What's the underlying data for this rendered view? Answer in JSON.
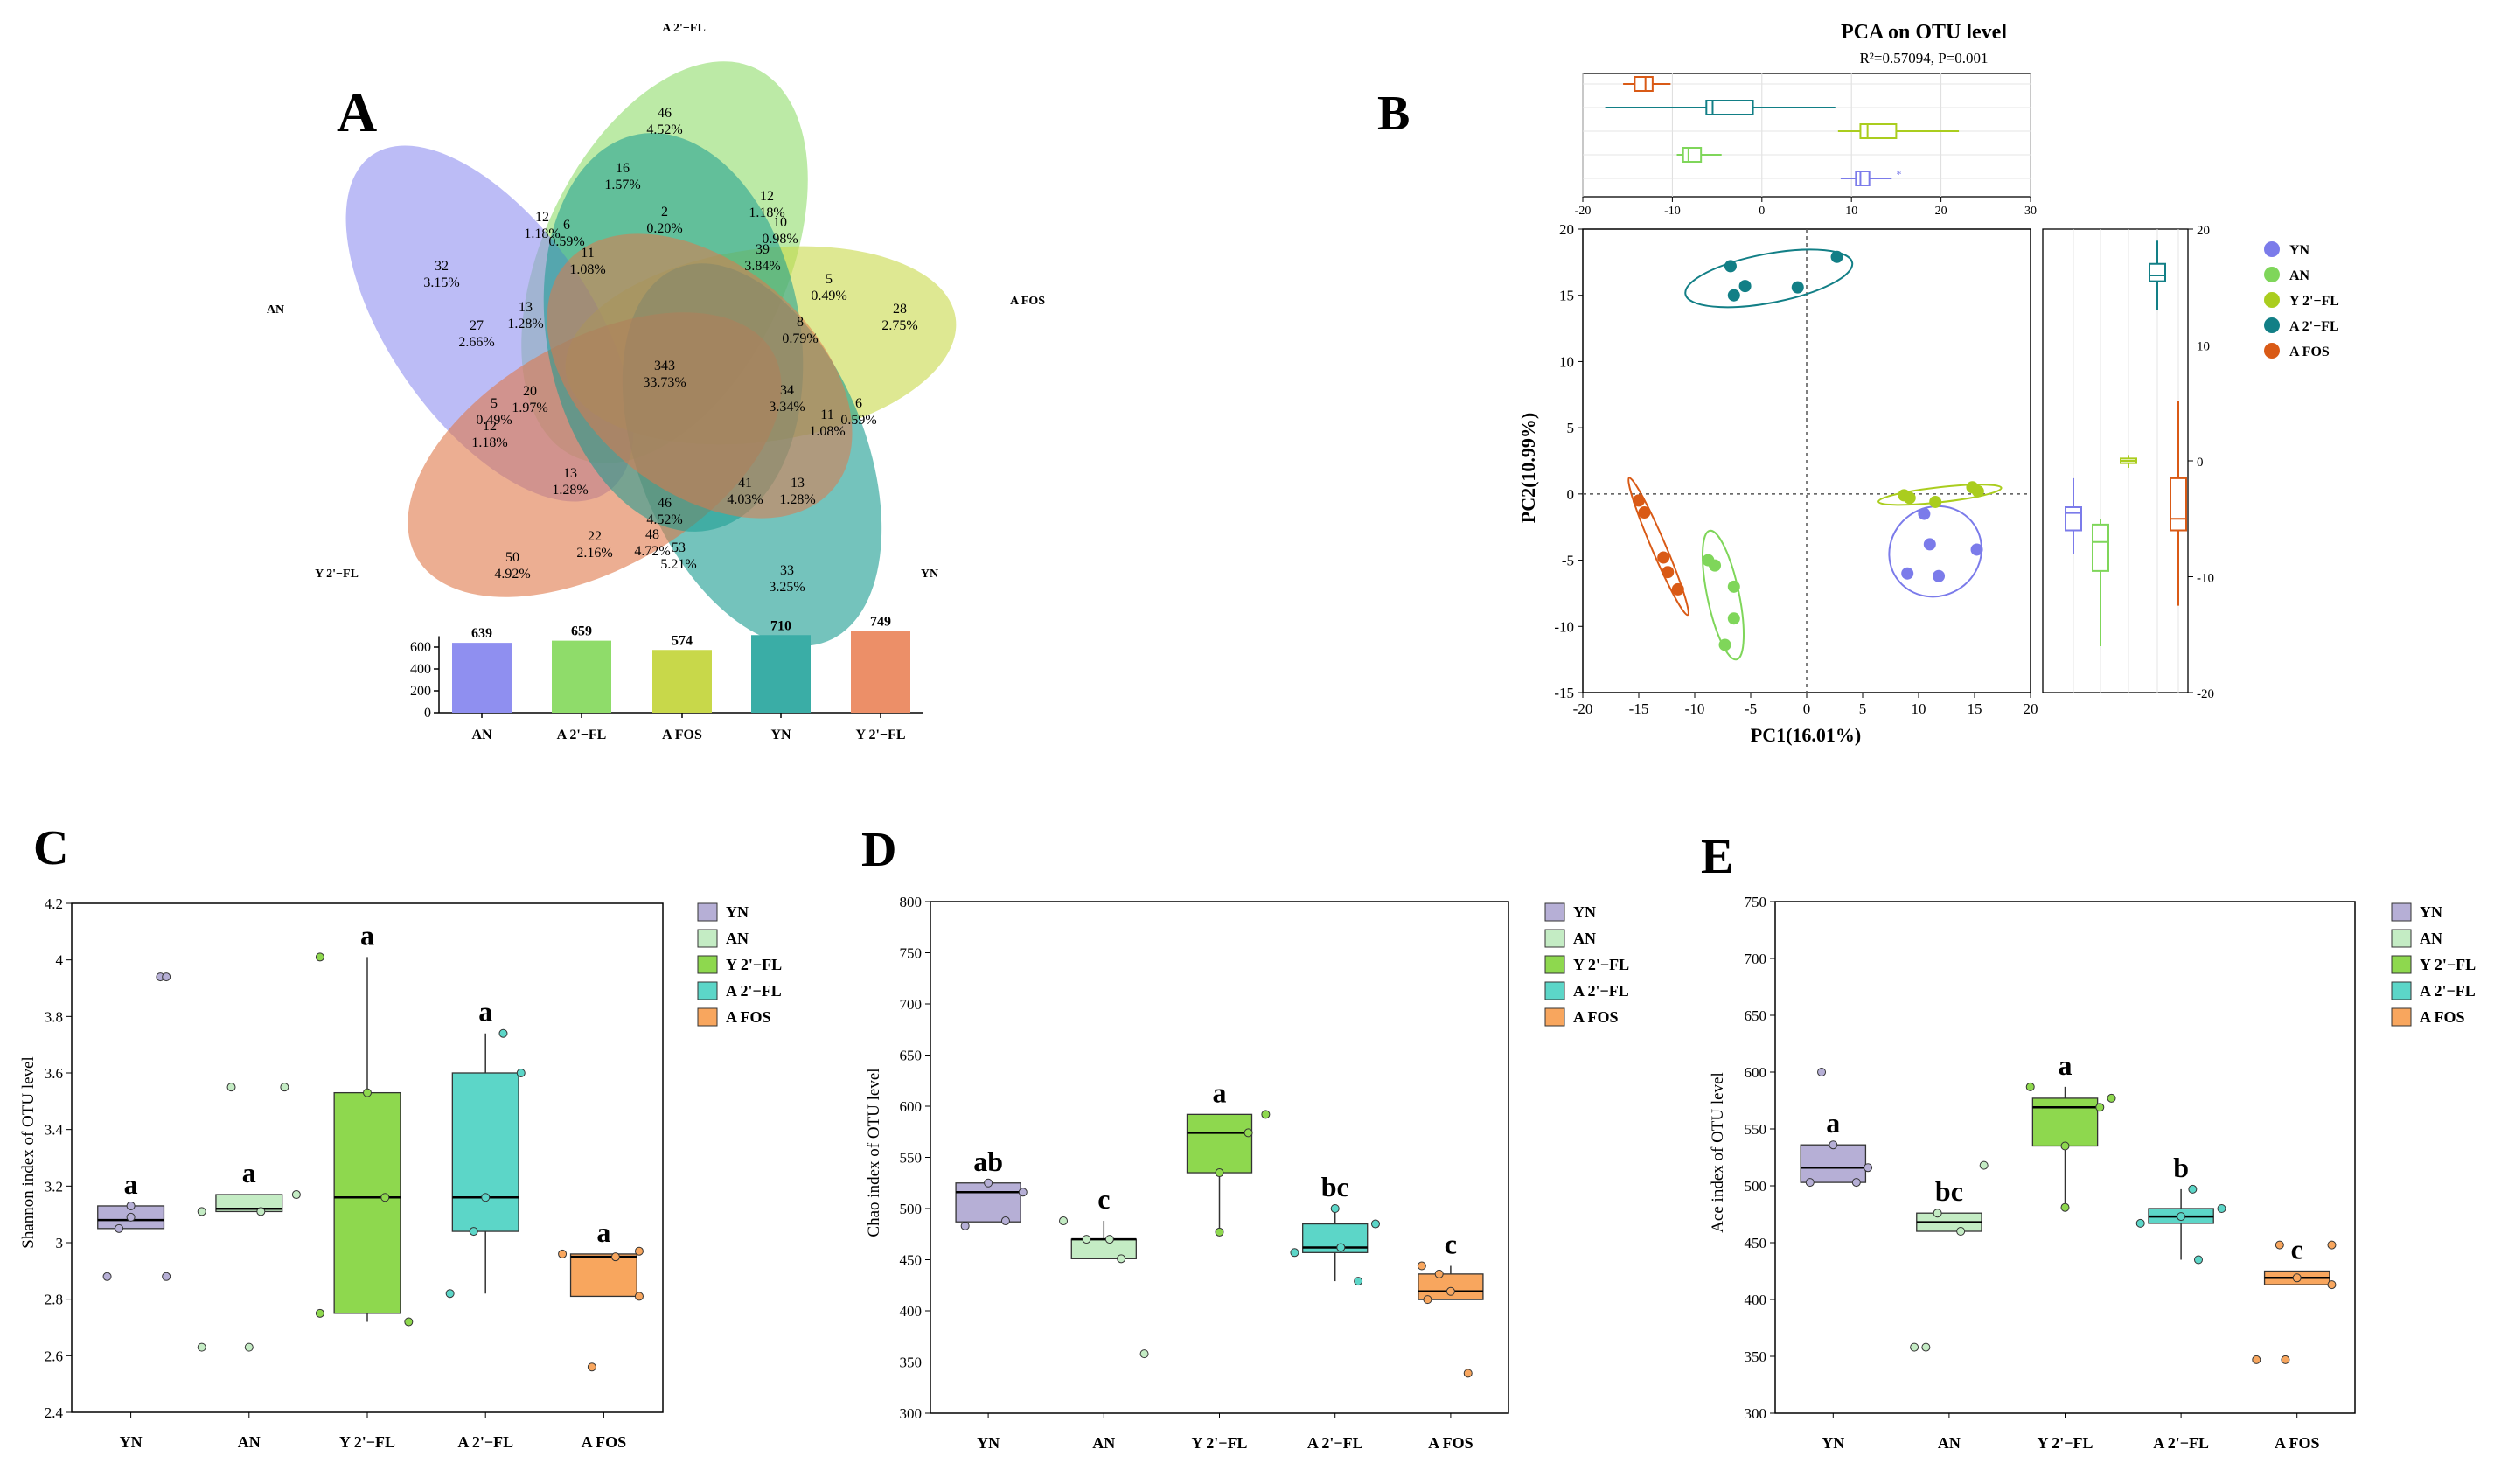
{
  "panel_letters": {
    "a": "A",
    "b": "B",
    "c": "C",
    "d": "D",
    "e": "E"
  },
  "colors": {
    "YN_venn": "#8f8ff0",
    "AN_venn": "#8fdc6a",
    "AFOS_venn": "#c8d84a",
    "A2FL_venn": "#179b8f",
    "Y2FL_venn": "#e0784a",
    "YN_pca": "#7b7bea",
    "AN_pca": "#7fd65a",
    "Y2FL_pca": "#aacd1e",
    "A2FL_pca": "#127f86",
    "AFOS_pca": "#d95a16",
    "YN_box": "#b6afd6",
    "AN_box": "#c4ecc4",
    "Y2FL_box": "#8ed84e",
    "A2FL_box": "#5cd6c8",
    "AFOS_box": "#f8a65e"
  },
  "chart_data": [
    {
      "type": "venn",
      "panel": "A",
      "sets": [
        "A 2'−FL",
        "AN",
        "A FOS",
        "Y 2'−FL",
        "YN"
      ],
      "regions": [
        {
          "count": "46",
          "pct": "4.52%"
        },
        {
          "count": "16",
          "pct": "1.57%"
        },
        {
          "count": "12",
          "pct": "1.18%"
        },
        {
          "count": "6",
          "pct": "0.59%"
        },
        {
          "count": "2",
          "pct": "0.20%"
        },
        {
          "count": "12",
          "pct": "1.18%"
        },
        {
          "count": "10",
          "pct": "0.98%"
        },
        {
          "count": "32",
          "pct": "3.15%"
        },
        {
          "count": "11",
          "pct": "1.08%"
        },
        {
          "count": "39",
          "pct": "3.84%"
        },
        {
          "count": "5",
          "pct": "0.49%"
        },
        {
          "count": "28",
          "pct": "2.75%"
        },
        {
          "count": "13",
          "pct": "1.28%"
        },
        {
          "count": "27",
          "pct": "2.66%"
        },
        {
          "count": "8",
          "pct": "0.79%"
        },
        {
          "count": "343",
          "pct": "33.73%"
        },
        {
          "count": "34",
          "pct": "3.34%"
        },
        {
          "count": "6",
          "pct": "0.59%"
        },
        {
          "count": "11",
          "pct": "1.08%"
        },
        {
          "count": "20",
          "pct": "1.97%"
        },
        {
          "count": "5",
          "pct": "0.49%"
        },
        {
          "count": "12",
          "pct": "1.18%"
        },
        {
          "count": "13",
          "pct": "1.28%"
        },
        {
          "count": "41",
          "pct": "4.03%"
        },
        {
          "count": "13",
          "pct": "1.28%"
        },
        {
          "count": "46",
          "pct": "4.52%"
        },
        {
          "count": "22",
          "pct": "2.16%"
        },
        {
          "count": "48",
          "pct": "4.72%"
        },
        {
          "count": "53",
          "pct": "5.21%"
        },
        {
          "count": "50",
          "pct": "4.92%"
        },
        {
          "count": "33",
          "pct": "3.25%"
        }
      ],
      "bar": {
        "categories": [
          "AN",
          "A 2'−FL",
          "A FOS",
          "YN",
          "Y 2'−FL"
        ],
        "values": [
          639,
          659,
          574,
          710,
          749
        ],
        "ylim": [
          0,
          800
        ],
        "yticks": [
          0,
          200,
          400,
          600
        ]
      }
    },
    {
      "type": "scatter",
      "panel": "B",
      "title": "PCA on OTU level",
      "subtitle": "R²=0.57094, P=0.001",
      "xlabel": "PC1(16.01%)",
      "ylabel": "PC2(10.99%)",
      "xlim": [
        -20,
        20
      ],
      "ylim": [
        -15,
        20
      ],
      "xticks": [
        -20,
        -15,
        -10,
        -5,
        0,
        5,
        10,
        15,
        20
      ],
      "yticks": [
        -15,
        -10,
        -5,
        0,
        5,
        10,
        15,
        20
      ],
      "top_xticks": [
        -20,
        -10,
        0,
        10,
        20,
        30
      ],
      "right_yticks": [
        -20,
        -10,
        0,
        10,
        20
      ],
      "series": [
        {
          "name": "YN",
          "x": [
            9.0,
            10.5,
            11.8,
            15.2,
            11.0
          ],
          "y": [
            -6.0,
            -1.5,
            -6.2,
            -4.2,
            -3.8
          ]
        },
        {
          "name": "AN",
          "x": [
            -8.8,
            -8.2,
            -7.3,
            -6.5,
            -6.5
          ],
          "y": [
            -5.0,
            -5.4,
            -11.4,
            -7.0,
            -9.4
          ]
        },
        {
          "name": "Y 2'−FL",
          "x": [
            8.7,
            9.2,
            11.5,
            14.8,
            15.3
          ],
          "y": [
            -0.1,
            -0.3,
            -0.6,
            0.5,
            0.2
          ]
        },
        {
          "name": "A 2'−FL",
          "x": [
            -6.8,
            -5.5,
            -6.5,
            -0.8,
            2.7
          ],
          "y": [
            17.2,
            15.7,
            15.0,
            15.6,
            17.9
          ]
        },
        {
          "name": "A FOS",
          "x": [
            -15.0,
            -14.5,
            -12.8,
            -12.4,
            -11.5
          ],
          "y": [
            -0.5,
            -1.4,
            -4.8,
            -5.9,
            -7.2
          ]
        }
      ],
      "top_boxes": [
        {
          "name": "A FOS",
          "min": -15.5,
          "q1": -14.2,
          "median": -13.0,
          "q3": -12.2,
          "max": -10.2
        },
        {
          "name": "A 2'−FL",
          "min": -17.5,
          "q1": -6.2,
          "median": -5.5,
          "q3": -1.0,
          "max": 8.2
        },
        {
          "name": "Y 2'−FL",
          "min": 8.5,
          "q1": 11.0,
          "median": 11.8,
          "q3": 15.0,
          "max": 22.0
        },
        {
          "name": "AN",
          "min": -9.5,
          "q1": -8.8,
          "median": -8.2,
          "q3": -6.8,
          "max": -4.5
        },
        {
          "name": "YN",
          "min": 8.8,
          "q1": 10.5,
          "median": 11.0,
          "q3": 12.0,
          "max": 14.5,
          "outlier": 15.3
        }
      ],
      "side_boxes": [
        {
          "name": "YN",
          "min": -8.0,
          "q1": -6.0,
          "median": -4.5,
          "q3": -4.0,
          "max": -1.5
        },
        {
          "name": "AN",
          "min": -16.0,
          "q1": -9.5,
          "median": -7.0,
          "q3": -5.5,
          "max": -5.0
        },
        {
          "name": "Y 2'−FL",
          "min": -0.6,
          "q1": -0.2,
          "median": 0.0,
          "q3": 0.2,
          "max": 0.5
        },
        {
          "name": "A 2'−FL",
          "min": 13.0,
          "q1": 15.5,
          "median": 16.0,
          "q3": 17.0,
          "max": 19.0
        },
        {
          "name": "A FOS",
          "min": -12.5,
          "q1": -6.0,
          "median": -5.0,
          "q3": -1.5,
          "max": 5.2
        }
      ],
      "legend": [
        "YN",
        "AN",
        "Y 2'−FL",
        "A 2'−FL",
        "A FOS"
      ]
    },
    {
      "type": "box",
      "panel": "C",
      "ylabel": "Shannon index of OTU level",
      "ylim": [
        2.4,
        4.2
      ],
      "yticks": [
        2.4,
        2.6,
        2.8,
        3.0,
        3.2,
        3.4,
        3.6,
        3.8,
        4.0,
        4.2
      ],
      "ytick_labels": [
        "2.4",
        "2.6",
        "2.8",
        "3",
        "3.2",
        "3.4",
        "3.6",
        "3.8",
        "4",
        "4.2"
      ],
      "categories": [
        "YN",
        "AN",
        "Y 2'−FL",
        "A 2'−FL",
        "A FOS"
      ],
      "boxes": [
        {
          "min": 3.05,
          "q1": 3.05,
          "median": 3.08,
          "q3": 3.13,
          "max": 3.13,
          "sig": "a",
          "points": [
            [
              -0.2,
              2.88
            ],
            [
              -0.1,
              3.05
            ],
            [
              0.0,
              3.09
            ],
            [
              0.25,
              3.94
            ],
            [
              0.3,
              3.94
            ],
            [
              0.3,
              2.88
            ],
            [
              0.0,
              3.13
            ]
          ]
        },
        {
          "min": 3.11,
          "q1": 3.11,
          "median": 3.12,
          "q3": 3.17,
          "max": 3.17,
          "sig": "a",
          "points": [
            [
              -0.4,
              2.63
            ],
            [
              -0.4,
              3.11
            ],
            [
              -0.15,
              3.55
            ],
            [
              0.0,
              2.63
            ],
            [
              0.1,
              3.11
            ],
            [
              0.3,
              3.55
            ],
            [
              0.4,
              3.17
            ]
          ]
        },
        {
          "min": 2.72,
          "q1": 2.75,
          "median": 3.16,
          "q3": 3.53,
          "max": 4.01,
          "sig": "a",
          "points": [
            [
              -0.4,
              4.01
            ],
            [
              -0.4,
              2.75
            ],
            [
              0.0,
              3.53
            ],
            [
              0.15,
              3.16
            ],
            [
              0.35,
              2.72
            ]
          ]
        },
        {
          "min": 2.82,
          "q1": 3.04,
          "median": 3.16,
          "q3": 3.6,
          "max": 3.74,
          "sig": "a",
          "points": [
            [
              -0.3,
              2.82
            ],
            [
              -0.1,
              3.04
            ],
            [
              0.0,
              3.16
            ],
            [
              0.15,
              3.74
            ],
            [
              0.3,
              3.6
            ]
          ]
        },
        {
          "min": 2.81,
          "q1": 2.81,
          "median": 2.95,
          "q3": 2.96,
          "max": 2.96,
          "sig": "a",
          "points": [
            [
              -0.35,
              2.96
            ],
            [
              -0.1,
              2.56
            ],
            [
              0.1,
              2.95
            ],
            [
              0.3,
              2.97
            ],
            [
              0.3,
              2.81
            ]
          ]
        }
      ],
      "legend": [
        "YN",
        "AN",
        "Y 2'−FL",
        "A 2'−FL",
        "A FOS"
      ]
    },
    {
      "type": "box",
      "panel": "D",
      "ylabel": "Chao index of OTU level",
      "ylim": [
        300,
        800
      ],
      "yticks": [
        300,
        350,
        400,
        450,
        500,
        550,
        600,
        650,
        700,
        750,
        800
      ],
      "ytick_labels": [
        "300",
        "350",
        "400",
        "450",
        "500",
        "550",
        "600",
        "650",
        "700",
        "750",
        "800"
      ],
      "categories": [
        "YN",
        "AN",
        "Y 2'−FL",
        "A 2'−FL",
        "A FOS"
      ],
      "boxes": [
        {
          "min": 487,
          "q1": 487,
          "median": 516,
          "q3": 525,
          "max": 525,
          "sig": "ab",
          "points": [
            [
              -0.2,
              483
            ],
            [
              0.0,
              525
            ],
            [
              0.15,
              488
            ],
            [
              0.3,
              516
            ]
          ]
        },
        {
          "min": 451,
          "q1": 451,
          "median": 470,
          "q3": 470,
          "max": 488,
          "sig": "c",
          "points": [
            [
              -0.35,
              488
            ],
            [
              -0.15,
              470
            ],
            [
              0.05,
              470
            ],
            [
              0.15,
              451
            ],
            [
              0.35,
              358
            ]
          ]
        },
        {
          "min": 477,
          "q1": 535,
          "median": 574,
          "q3": 592,
          "max": 592,
          "sig": "a",
          "points": [
            [
              0.0,
              535
            ],
            [
              0.0,
              477
            ],
            [
              0.25,
              574
            ],
            [
              0.4,
              592
            ]
          ]
        },
        {
          "min": 429,
          "q1": 457,
          "median": 462,
          "q3": 485,
          "max": 500,
          "sig": "bc",
          "points": [
            [
              -0.35,
              457
            ],
            [
              0.0,
              500
            ],
            [
              0.05,
              462
            ],
            [
              0.2,
              429
            ],
            [
              0.35,
              485
            ]
          ]
        },
        {
          "min": 411,
          "q1": 411,
          "median": 419,
          "q3": 436,
          "max": 444,
          "sig": "c",
          "points": [
            [
              -0.25,
              444
            ],
            [
              -0.2,
              411
            ],
            [
              -0.1,
              436
            ],
            [
              0.0,
              419
            ],
            [
              0.15,
              339
            ]
          ]
        }
      ],
      "legend": [
        "YN",
        "AN",
        "Y 2'−FL",
        "A 2'−FL",
        "A FOS"
      ]
    },
    {
      "type": "box",
      "panel": "E",
      "ylabel": "Ace index of OTU level",
      "ylim": [
        300,
        750
      ],
      "yticks": [
        300,
        350,
        400,
        450,
        500,
        550,
        600,
        650,
        700,
        750
      ],
      "ytick_labels": [
        "300",
        "350",
        "400",
        "450",
        "500",
        "550",
        "600",
        "650",
        "700",
        "750"
      ],
      "categories": [
        "YN",
        "AN",
        "Y 2'−FL",
        "A 2'−FL",
        "A FOS"
      ],
      "boxes": [
        {
          "min": 503,
          "q1": 503,
          "median": 516,
          "q3": 536,
          "max": 536,
          "sig": "a",
          "points": [
            [
              -0.1,
              600
            ],
            [
              -0.2,
              503
            ],
            [
              0.0,
              536
            ],
            [
              0.3,
              516
            ],
            [
              0.2,
              503
            ]
          ]
        },
        {
          "min": 460,
          "q1": 460,
          "median": 468,
          "q3": 476,
          "max": 476,
          "sig": "bc",
          "points": [
            [
              -0.3,
              358
            ],
            [
              -0.2,
              358
            ],
            [
              -0.1,
              476
            ],
            [
              0.1,
              460
            ],
            [
              0.3,
              518
            ]
          ]
        },
        {
          "min": 481,
          "q1": 535,
          "median": 569,
          "q3": 577,
          "max": 587,
          "sig": "a",
          "points": [
            [
              -0.3,
              587
            ],
            [
              0.0,
              535
            ],
            [
              0.0,
              481
            ],
            [
              0.3,
              569
            ],
            [
              0.4,
              577
            ]
          ]
        },
        {
          "min": 435,
          "q1": 467,
          "median": 473,
          "q3": 480,
          "max": 497,
          "sig": "b",
          "points": [
            [
              -0.35,
              467
            ],
            [
              0.0,
              473
            ],
            [
              0.1,
              497
            ],
            [
              0.15,
              435
            ],
            [
              0.35,
              480
            ]
          ]
        },
        {
          "min": 413,
          "q1": 413,
          "median": 419,
          "q3": 425,
          "max": 425,
          "sig": "c",
          "points": [
            [
              -0.35,
              347
            ],
            [
              -0.1,
              347
            ],
            [
              -0.15,
              448
            ],
            [
              0.0,
              419
            ],
            [
              0.3,
              413
            ],
            [
              0.3,
              448
            ]
          ]
        }
      ],
      "legend": [
        "YN",
        "AN",
        "Y 2'−FL",
        "A 2'−FL",
        "A FOS"
      ]
    }
  ]
}
